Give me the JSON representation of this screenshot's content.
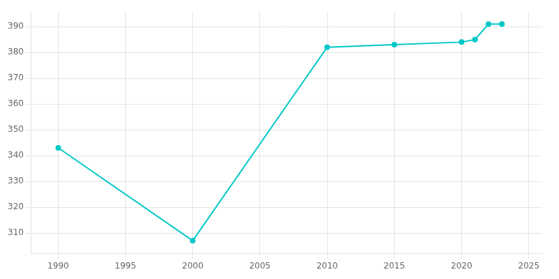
{
  "chart_data": {
    "type": "line",
    "x": [
      1990,
      2000,
      2010,
      2015,
      2020,
      2021,
      2022,
      2023
    ],
    "values": [
      343,
      307,
      382,
      383,
      384,
      385,
      391,
      391
    ],
    "color": "#00c8c8",
    "marker": "circle",
    "xlim": [
      1988,
      2026
    ],
    "xticks": [
      1990,
      1995,
      2000,
      2005,
      2010,
      2015,
      2020,
      2025
    ],
    "ylim": [
      302,
      396
    ],
    "yticks": [
      310,
      320,
      330,
      340,
      350,
      360,
      370,
      380,
      390
    ],
    "grid": true
  }
}
